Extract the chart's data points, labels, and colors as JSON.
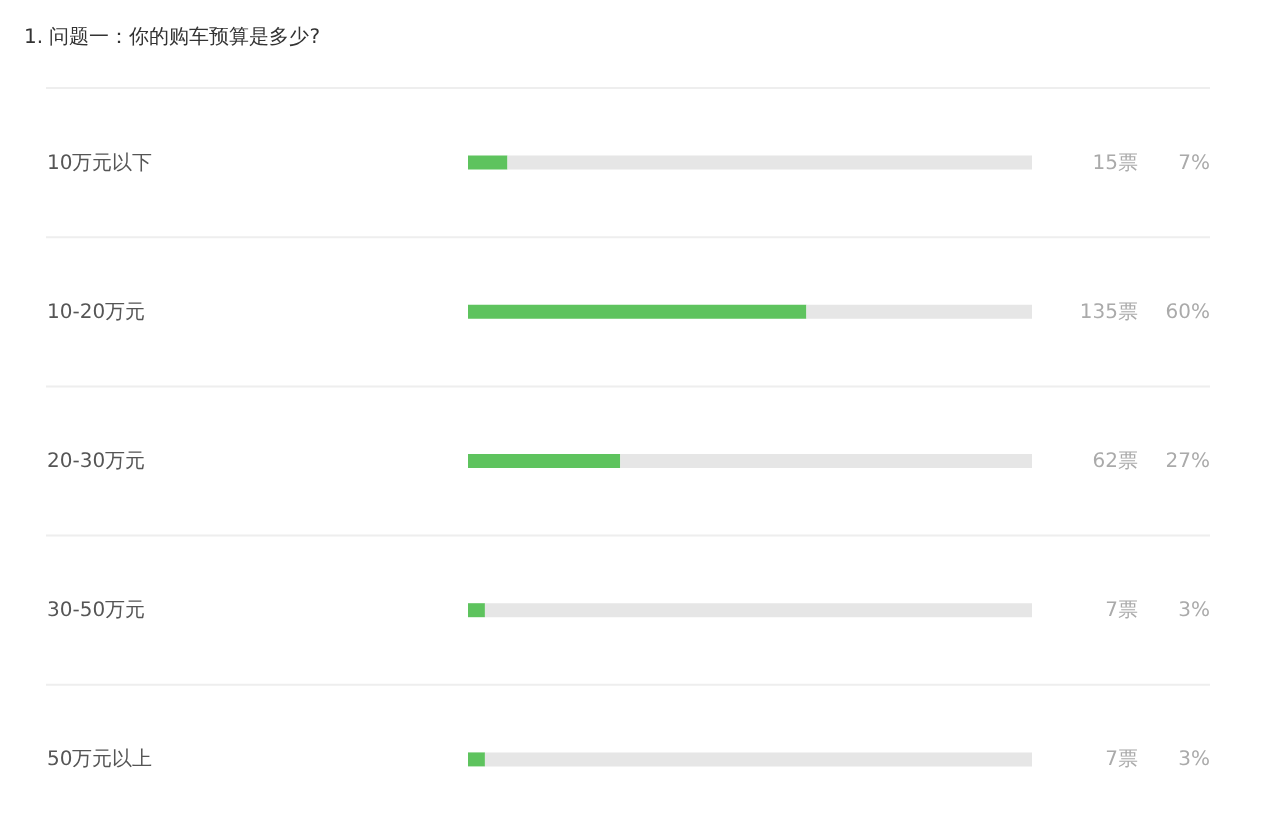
{
  "chart_data": {
    "type": "bar",
    "orientation": "horizontal",
    "stacked": true,
    "title": "1. 问题一：你的购车预算是多少?",
    "categories": [
      "10万元以下",
      "10-20万元",
      "20-30万元",
      "30-50万元",
      "50万元以上"
    ],
    "series": [
      {
        "color": "#5ec35e",
        "values": [
          7,
          60,
          27,
          3,
          3
        ],
        "value_labels": [
          "7%",
          "60%",
          "27%",
          "3%",
          "3%"
        ]
      },
      {
        "color": "#e6e6e6",
        "values": [
          93,
          40,
          73,
          97,
          97
        ]
      }
    ],
    "xlim": [
      0,
      100
    ],
    "tick_labels": "y",
    "grid": "y",
    "legend": false,
    "annotations": [
      "15票",
      "135票",
      "62票",
      "7票",
      "7票"
    ]
  }
}
